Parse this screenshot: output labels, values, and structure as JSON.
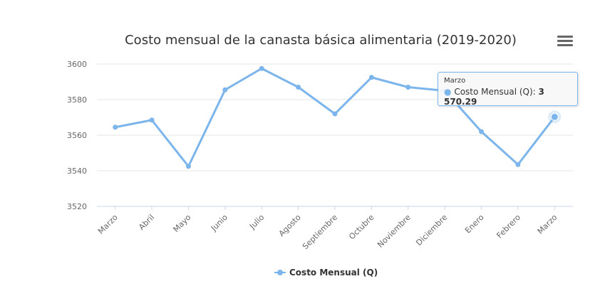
{
  "chart_data": {
    "type": "line",
    "title": "Costo mensual de la canasta básica alimentaria (2019-2020)",
    "categories": [
      "Marzo",
      "Abril",
      "Mayo",
      "Junio",
      "Julio",
      "Agosto",
      "Septiembre",
      "Octubre",
      "Noviembre",
      "Diciembre",
      "Enero",
      "Febrero",
      "Marzo"
    ],
    "series": [
      {
        "name": "Costo Mensual (Q)",
        "color": "#7cb5ec",
        "values": [
          3564.5,
          3568.5,
          3542.5,
          3585.5,
          3597.5,
          3587.0,
          3572.0,
          3592.5,
          3587.0,
          3585.0,
          3562.0,
          3543.5,
          3570.29
        ]
      }
    ],
    "ylim": [
      3520,
      3600
    ],
    "yticks": [
      3520,
      3540,
      3560,
      3580,
      3600
    ],
    "grid": true,
    "legend_position": "bottom-center"
  },
  "tooltip": {
    "header": "Marzo",
    "series_label": "Costo Mensual (Q):",
    "value": "3 570.29"
  },
  "colors": {
    "series": "#7cb5ec",
    "grid": "#e6e6e6",
    "axis": "#ccd6eb",
    "text": "#666666",
    "title": "#333333"
  },
  "icons": {
    "menu": "hamburger-menu-icon"
  }
}
